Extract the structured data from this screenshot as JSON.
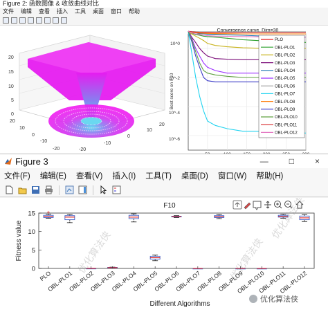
{
  "figure2": {
    "title": "Figure 2: 函数图像 & 收敛曲线对比",
    "menu": [
      "文件",
      "编辑",
      "查看",
      "插入",
      "工具",
      "桌面",
      "窗口",
      "帮助"
    ],
    "surface_plot": {
      "z_ticks": [
        "0",
        "5",
        "10",
        "15",
        "20"
      ],
      "x_ticks": [
        "-20",
        "-10",
        "0",
        "10",
        "20"
      ],
      "y_ticks": [
        "20",
        "10",
        "0",
        "-10",
        "-20"
      ],
      "colors": {
        "high": "#e61cf0",
        "low": "#4de1f0"
      }
    },
    "convergence": {
      "title": "Convergence curve, Dim=30",
      "ylabel": "Best score on F10",
      "xlabel": "Iteration",
      "y_ticks": [
        "10^0",
        "10^-2",
        "10^-4",
        "10^-6"
      ],
      "x_ticks": [
        "50",
        "100",
        "150",
        "200",
        "250",
        "300"
      ],
      "legend": [
        {
          "name": "PLO",
          "color": "#e41a1c"
        },
        {
          "name": "OBL-PLO1",
          "color": "#2ca02c"
        },
        {
          "name": "OBL-PLO2",
          "color": "#c7b21a"
        },
        {
          "name": "OBL-PLO3",
          "color": "#7a0b78"
        },
        {
          "name": "OBL-PLO4",
          "color": "#1f77b4"
        },
        {
          "name": "OBL-PLO5",
          "color": "#9b30ff"
        },
        {
          "name": "OBL-PLO6",
          "color": "#a0a0a0"
        },
        {
          "name": "OBL-PLO7",
          "color": "#1fd3f0"
        },
        {
          "name": "OBL-PLO8",
          "color": "#ff7f0e"
        },
        {
          "name": "OBL-PLO9",
          "color": "#3c3cc8"
        },
        {
          "name": "OBL-PLO10",
          "color": "#5fa040"
        },
        {
          "name": "OBL-PLO11",
          "color": "#d62728"
        },
        {
          "name": "OBL-PLO12",
          "color": "#e377c2"
        }
      ]
    }
  },
  "figure3": {
    "title": "Figure 3",
    "window_controls": [
      "—",
      "□",
      "×"
    ],
    "menu": [
      "文件(F)",
      "编辑(E)",
      "查看(V)",
      "插入(I)",
      "工具(T)",
      "桌面(D)",
      "窗口(W)",
      "帮助(H)"
    ],
    "axes_toolbar_icons": [
      "export-icon",
      "brush-icon",
      "datatip-icon",
      "pan-icon",
      "zoom-in-icon",
      "zoom-out-icon",
      "home-icon"
    ]
  },
  "watermarks": [
    "优化算法侠",
    "优化算法侠",
    "优化算法侠",
    "优化算法侠"
  ],
  "footer_watermark": "优化算法侠",
  "chart_data": [
    {
      "type": "line",
      "title": "Convergence curve, Dim=30",
      "xlabel": "Iteration",
      "ylabel": "Best score on F10",
      "yscale": "log",
      "xlim": [
        1,
        300
      ],
      "ylim": [
        1e-07,
        10
      ],
      "x": [
        1,
        10,
        20,
        30,
        40,
        50,
        70,
        100,
        140,
        200,
        260,
        300
      ],
      "series": [
        {
          "name": "PLO",
          "values": [
            15,
            14,
            13.5,
            13.2,
            13,
            12.9,
            12.8,
            12.7,
            12.6,
            12.5,
            12.5,
            12.5
          ]
        },
        {
          "name": "OBL-PLO1",
          "values": [
            15,
            12,
            9,
            8,
            7,
            6.5,
            6,
            5,
            4,
            3.2,
            2.8,
            2.6
          ]
        },
        {
          "name": "OBL-PLO2",
          "values": [
            15,
            10,
            7,
            5,
            3.5,
            2.2,
            1.6,
            1.3,
            1.1,
            1.0,
            1.0,
            1.0
          ]
        },
        {
          "name": "OBL-PLO3",
          "values": [
            15,
            6,
            2.5,
            1,
            0.5,
            0.3,
            0.2,
            0.18,
            0.17,
            0.17,
            0.17,
            0.17
          ]
        },
        {
          "name": "OBL-PLO4",
          "values": [
            15,
            13,
            12,
            11,
            10,
            9.5,
            9,
            8.5,
            8,
            7,
            6.5,
            6
          ]
        },
        {
          "name": "OBL-PLO5",
          "values": [
            15,
            5,
            1,
            0.3,
            0.1,
            0.05,
            0.03,
            0.02,
            0.02,
            0.02,
            0.02,
            0.02
          ]
        },
        {
          "name": "OBL-PLO6",
          "values": [
            15,
            14.5,
            14.2,
            14,
            14,
            14,
            14,
            14,
            14,
            14,
            14,
            14
          ]
        },
        {
          "name": "OBL-PLO7",
          "values": [
            15,
            0.5,
            0.01,
            0.0005,
            5e-05,
            1e-05,
            5e-06,
            3e-06,
            2e-06,
            2e-06,
            1.5e-06,
            1.5e-06
          ]
        },
        {
          "name": "OBL-PLO8",
          "values": [
            15,
            13,
            12,
            11.5,
            11,
            10.8,
            10.5,
            10.3,
            10,
            10,
            10,
            10
          ]
        },
        {
          "name": "OBL-PLO9",
          "values": [
            15,
            3,
            0.3,
            0.05,
            0.01,
            0.006,
            0.005,
            0.005,
            0.005,
            0.005,
            0.005,
            0.005
          ]
        },
        {
          "name": "OBL-PLO10",
          "values": [
            15,
            4,
            0.6,
            0.1,
            0.03,
            0.02,
            0.015,
            0.012,
            0.01,
            0.01,
            0.01,
            0.01
          ]
        },
        {
          "name": "OBL-PLO11",
          "values": [
            15,
            14,
            13.5,
            13.2,
            13,
            12.8,
            12.6,
            12.5,
            12.5,
            12.4,
            12.4,
            12.4
          ]
        },
        {
          "name": "OBL-PLO12",
          "values": [
            15,
            12,
            10,
            9,
            8,
            7.5,
            7,
            6.8,
            6.5,
            6.2,
            6,
            6
          ]
        }
      ]
    },
    {
      "type": "box",
      "title": "F10",
      "xlabel": "Different Algorithms",
      "ylabel": "Fitness value",
      "ylim": [
        0,
        15
      ],
      "y_ticks": [
        0,
        5,
        10,
        15
      ],
      "categories": [
        "PLO",
        "OBL-PLO1",
        "OBL-PLO2",
        "OBL-PLO3",
        "OBL-PLO4",
        "OBL-PLO5",
        "OBL-PLO6",
        "OBL-PLO7",
        "OBL-PLO8",
        "OBL-PLO9",
        "OBL-PLO10",
        "OBL-PLO11",
        "OBL-PLO12"
      ],
      "boxes": [
        {
          "min": 13.6,
          "q1": 13.8,
          "median": 14.1,
          "q3": 14.4,
          "max": 14.7,
          "outliers": [
            15.3
          ]
        },
        {
          "min": 12.4,
          "q1": 13.2,
          "median": 13.9,
          "q3": 14.3,
          "max": 14.6,
          "outliers": []
        },
        {
          "min": 0.02,
          "q1": 0.02,
          "median": 0.02,
          "q3": 0.02,
          "max": 0.02,
          "outliers": []
        },
        {
          "min": 0.1,
          "q1": 0.15,
          "median": 0.2,
          "q3": 0.28,
          "max": 0.35,
          "outliers": []
        },
        {
          "min": 12.6,
          "q1": 13.5,
          "median": 13.9,
          "q3": 14.4,
          "max": 14.8,
          "outliers": []
        },
        {
          "min": 2.1,
          "q1": 2.5,
          "median": 2.9,
          "q3": 3.3,
          "max": 3.6,
          "outliers": []
        },
        {
          "min": 13.8,
          "q1": 13.95,
          "median": 14.05,
          "q3": 14.15,
          "max": 14.3,
          "outliers": []
        },
        {
          "min": 0.0,
          "q1": 0.0,
          "median": 0.0,
          "q3": 0.0,
          "max": 0.0,
          "outliers": []
        },
        {
          "min": 13.5,
          "q1": 13.8,
          "median": 14.0,
          "q3": 14.3,
          "max": 14.6,
          "outliers": []
        },
        {
          "min": 0.0,
          "q1": 0.0,
          "median": 0.0,
          "q3": 0.0,
          "max": 0.0,
          "outliers": []
        },
        {
          "min": 0.0,
          "q1": 0.0,
          "median": 0.0,
          "q3": 0.0,
          "max": 0.0,
          "outliers": []
        },
        {
          "min": 13.6,
          "q1": 13.9,
          "median": 14.1,
          "q3": 14.4,
          "max": 14.7,
          "outliers": []
        },
        {
          "min": 12.7,
          "q1": 13.2,
          "median": 13.7,
          "q3": 14.2,
          "max": 14.6,
          "outliers": []
        }
      ]
    }
  ]
}
